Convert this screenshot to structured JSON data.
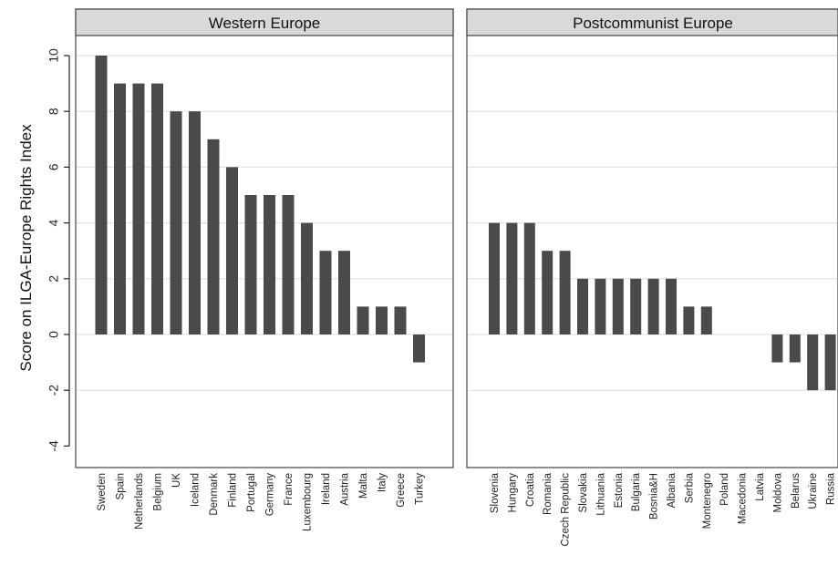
{
  "chart_data": {
    "type": "bar",
    "ylabel": "Score on ILGA-Europe Rights Index",
    "ylim": [
      -5,
      11
    ],
    "yticks": [
      10,
      8,
      6,
      4,
      2,
      0,
      -2,
      -4
    ],
    "grid": true,
    "bar_color": "#4a4a4a",
    "strip_color": "#d9d9d9",
    "panels": [
      {
        "title": "Western Europe",
        "categories": [
          "Sweden",
          "Spain",
          "Netherlands",
          "Belgium",
          "UK",
          "Iceland",
          "Denmark",
          "Finland",
          "Portugal",
          "Germany",
          "France",
          "Luxembourg",
          "Ireland",
          "Austria",
          "Malta",
          "Italy",
          "Greece",
          "Turkey"
        ],
        "values": [
          10,
          9,
          9,
          9,
          8,
          8,
          7,
          6,
          5,
          5,
          5,
          4,
          3,
          3,
          1,
          1,
          1,
          -1
        ]
      },
      {
        "title": "Postcommunist Europe",
        "categories": [
          "Slovenia",
          "Hungary",
          "Croatia",
          "Romania",
          "Czech Republic",
          "Slovakia",
          "Lithuania",
          "Estonia",
          "Bulgaria",
          "Bosnia&H",
          "Albania",
          "Serbia",
          "Montenegro",
          "Poland",
          "Macedonia",
          "Latvia",
          "Moldova",
          "Belarus",
          "Ukraine",
          "Russia"
        ],
        "values": [
          4,
          4,
          4,
          3,
          3,
          2,
          2,
          2,
          2,
          2,
          2,
          1,
          1,
          0,
          0,
          0,
          -1,
          -1,
          -2,
          -2
        ]
      }
    ]
  }
}
